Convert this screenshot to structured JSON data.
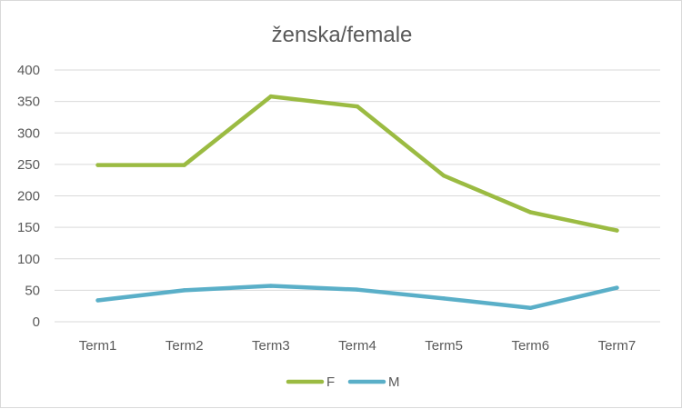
{
  "chart_data": {
    "type": "line",
    "title": "ženska/female",
    "xlabel": "",
    "ylabel": "",
    "categories": [
      "Term1",
      "Term2",
      "Term3",
      "Term4",
      "Term5",
      "Term6",
      "Term7"
    ],
    "ylim": [
      0,
      400
    ],
    "yticks": [
      "0",
      "50",
      "100",
      "150",
      "200",
      "250",
      "300",
      "350",
      "400"
    ],
    "grid": true,
    "legend": "bottom",
    "series": [
      {
        "name": "F",
        "color": "#9BBB42",
        "values": [
          249,
          249,
          358,
          342,
          232,
          174,
          145
        ]
      },
      {
        "name": "M",
        "color": "#5AAFC8",
        "values": [
          34,
          50,
          57,
          51,
          37,
          22,
          54
        ]
      }
    ]
  }
}
